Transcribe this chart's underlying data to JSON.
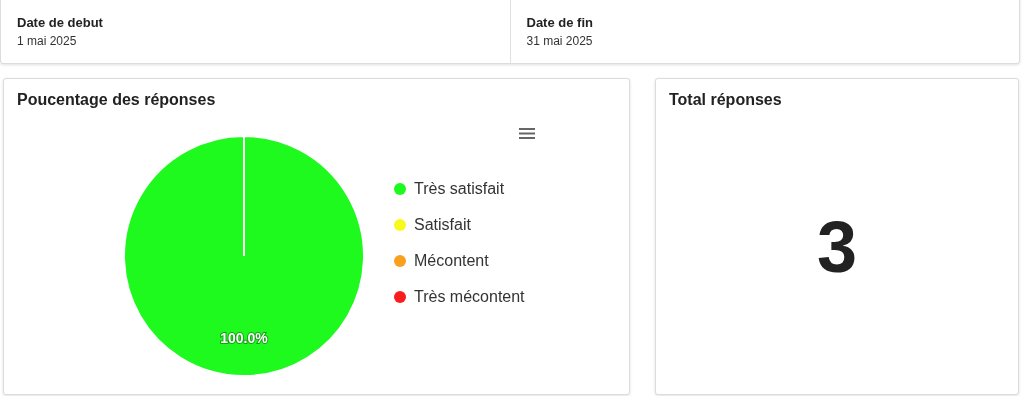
{
  "chart_data": [
    {
      "type": "other",
      "annotations": [
        "Date de debut",
        "1 mai 2025",
        "Date de fin",
        "31 mai 2025"
      ]
    },
    {
      "type": "pie",
      "title": "Poucentage des réponses",
      "categories": [
        "Très satisfait",
        "Satisfait",
        "Mécontent",
        "Très mécontent"
      ],
      "values": [
        100,
        0,
        0,
        0
      ],
      "colors": [
        "#1ef91e",
        "#f9f91e",
        "#f9a01e",
        "#f91e1e"
      ],
      "value_labels": [
        "100.0%",
        null,
        null,
        null
      ],
      "legend": "right"
    },
    {
      "type": "other",
      "title": "Total réponses",
      "annotations": [
        "3"
      ]
    }
  ]
}
